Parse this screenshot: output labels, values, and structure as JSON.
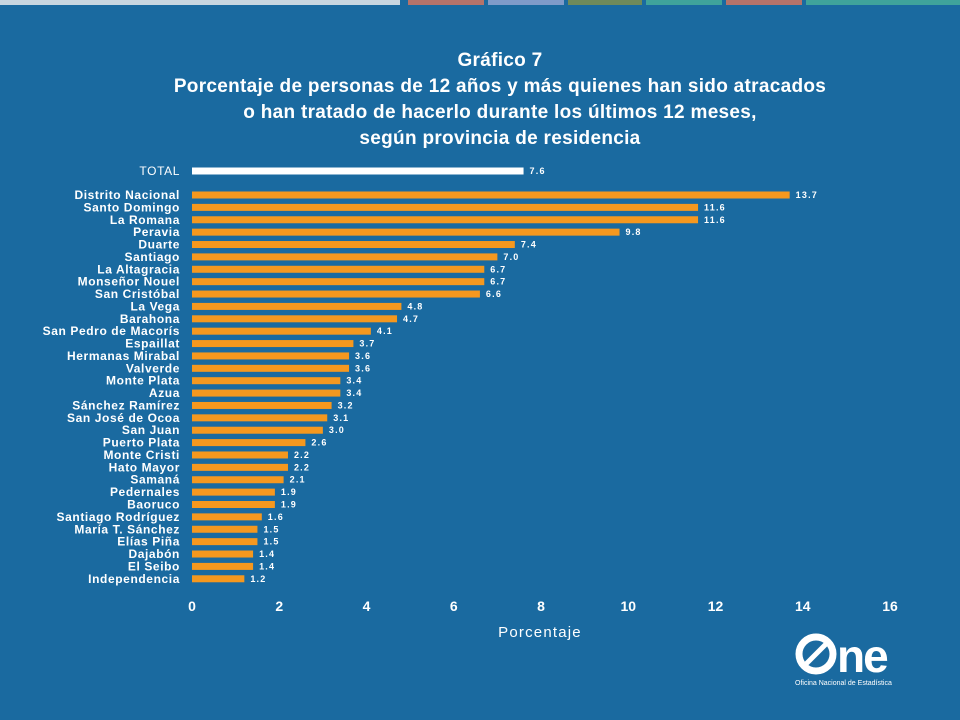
{
  "header": {
    "stripe_colors": [
      "#c8d6e0",
      "#b5736a",
      "#7f9bc9",
      "#6f8a5a",
      "#3fa39b",
      "#b5736a",
      "#3fa39b"
    ]
  },
  "chart_data": {
    "type": "bar",
    "orientation": "horizontal",
    "title": "Gráfico 7",
    "subtitle_lines": [
      "Porcentaje de personas de 12 años y más quienes han sido atracados",
      "o han tratado de hacerlo durante los últimos 12 meses,",
      "según provincia de residencia"
    ],
    "xlabel": "Porcentaje",
    "ylabel": "",
    "xlim": [
      0,
      16
    ],
    "xticks": [
      "0",
      "2",
      "4",
      "6",
      "8",
      "10",
      "12",
      "14",
      "16"
    ],
    "grid": false,
    "legend": "none",
    "total": {
      "label": "TOTAL",
      "value": 7.6,
      "value_label": "7.6",
      "color": "#ffffff"
    },
    "bar_color": "#f5981f",
    "categories": [
      "Distrito Nacional",
      "Santo Domingo",
      "La Romana",
      "Peravia",
      "Duarte",
      "Santiago",
      "La Altagracia",
      "Monseñor Nouel",
      "San Cristóbal",
      "La Vega",
      "Barahona",
      "San Pedro de Macorís",
      "Espaillat",
      "Hermanas Mirabal",
      "Valverde",
      "Monte Plata",
      "Azua",
      "Sánchez Ramírez",
      "San José de Ocoa",
      "San Juan",
      "Puerto Plata",
      "Monte Cristi",
      "Hato Mayor",
      "Samaná",
      "Pedernales",
      "Baoruco",
      "Santiago Rodríguez",
      "María T. Sánchez",
      "Elías Piña",
      "Dajabón",
      "El Seibo",
      "Independencia"
    ],
    "values": [
      13.7,
      11.6,
      11.6,
      9.8,
      7.4,
      7.0,
      6.7,
      6.7,
      6.6,
      4.8,
      4.7,
      4.1,
      3.7,
      3.6,
      3.6,
      3.4,
      3.4,
      3.2,
      3.1,
      3.0,
      2.6,
      2.2,
      2.2,
      2.1,
      1.9,
      1.9,
      1.6,
      1.5,
      1.5,
      1.4,
      1.4,
      1.2
    ],
    "value_labels": [
      "13.7",
      "11.6",
      "11.6",
      "9.8",
      "7.4",
      "7.0",
      "6.7",
      "6.7",
      "6.6",
      "4.8",
      "4.7",
      "4.1",
      "3.7",
      "3.6",
      "3.6",
      "3.4",
      "3.4",
      "3.2",
      "3.1",
      "3.0",
      "2.6",
      "2.2",
      "2.2",
      "2.1",
      "1.9",
      "1.9",
      "1.6",
      "1.5",
      "1.5",
      "1.4",
      "1.4",
      "1.2"
    ]
  },
  "logo": {
    "brand_text": "ne",
    "subtitle": "Oficina Nacional de Estadística"
  }
}
